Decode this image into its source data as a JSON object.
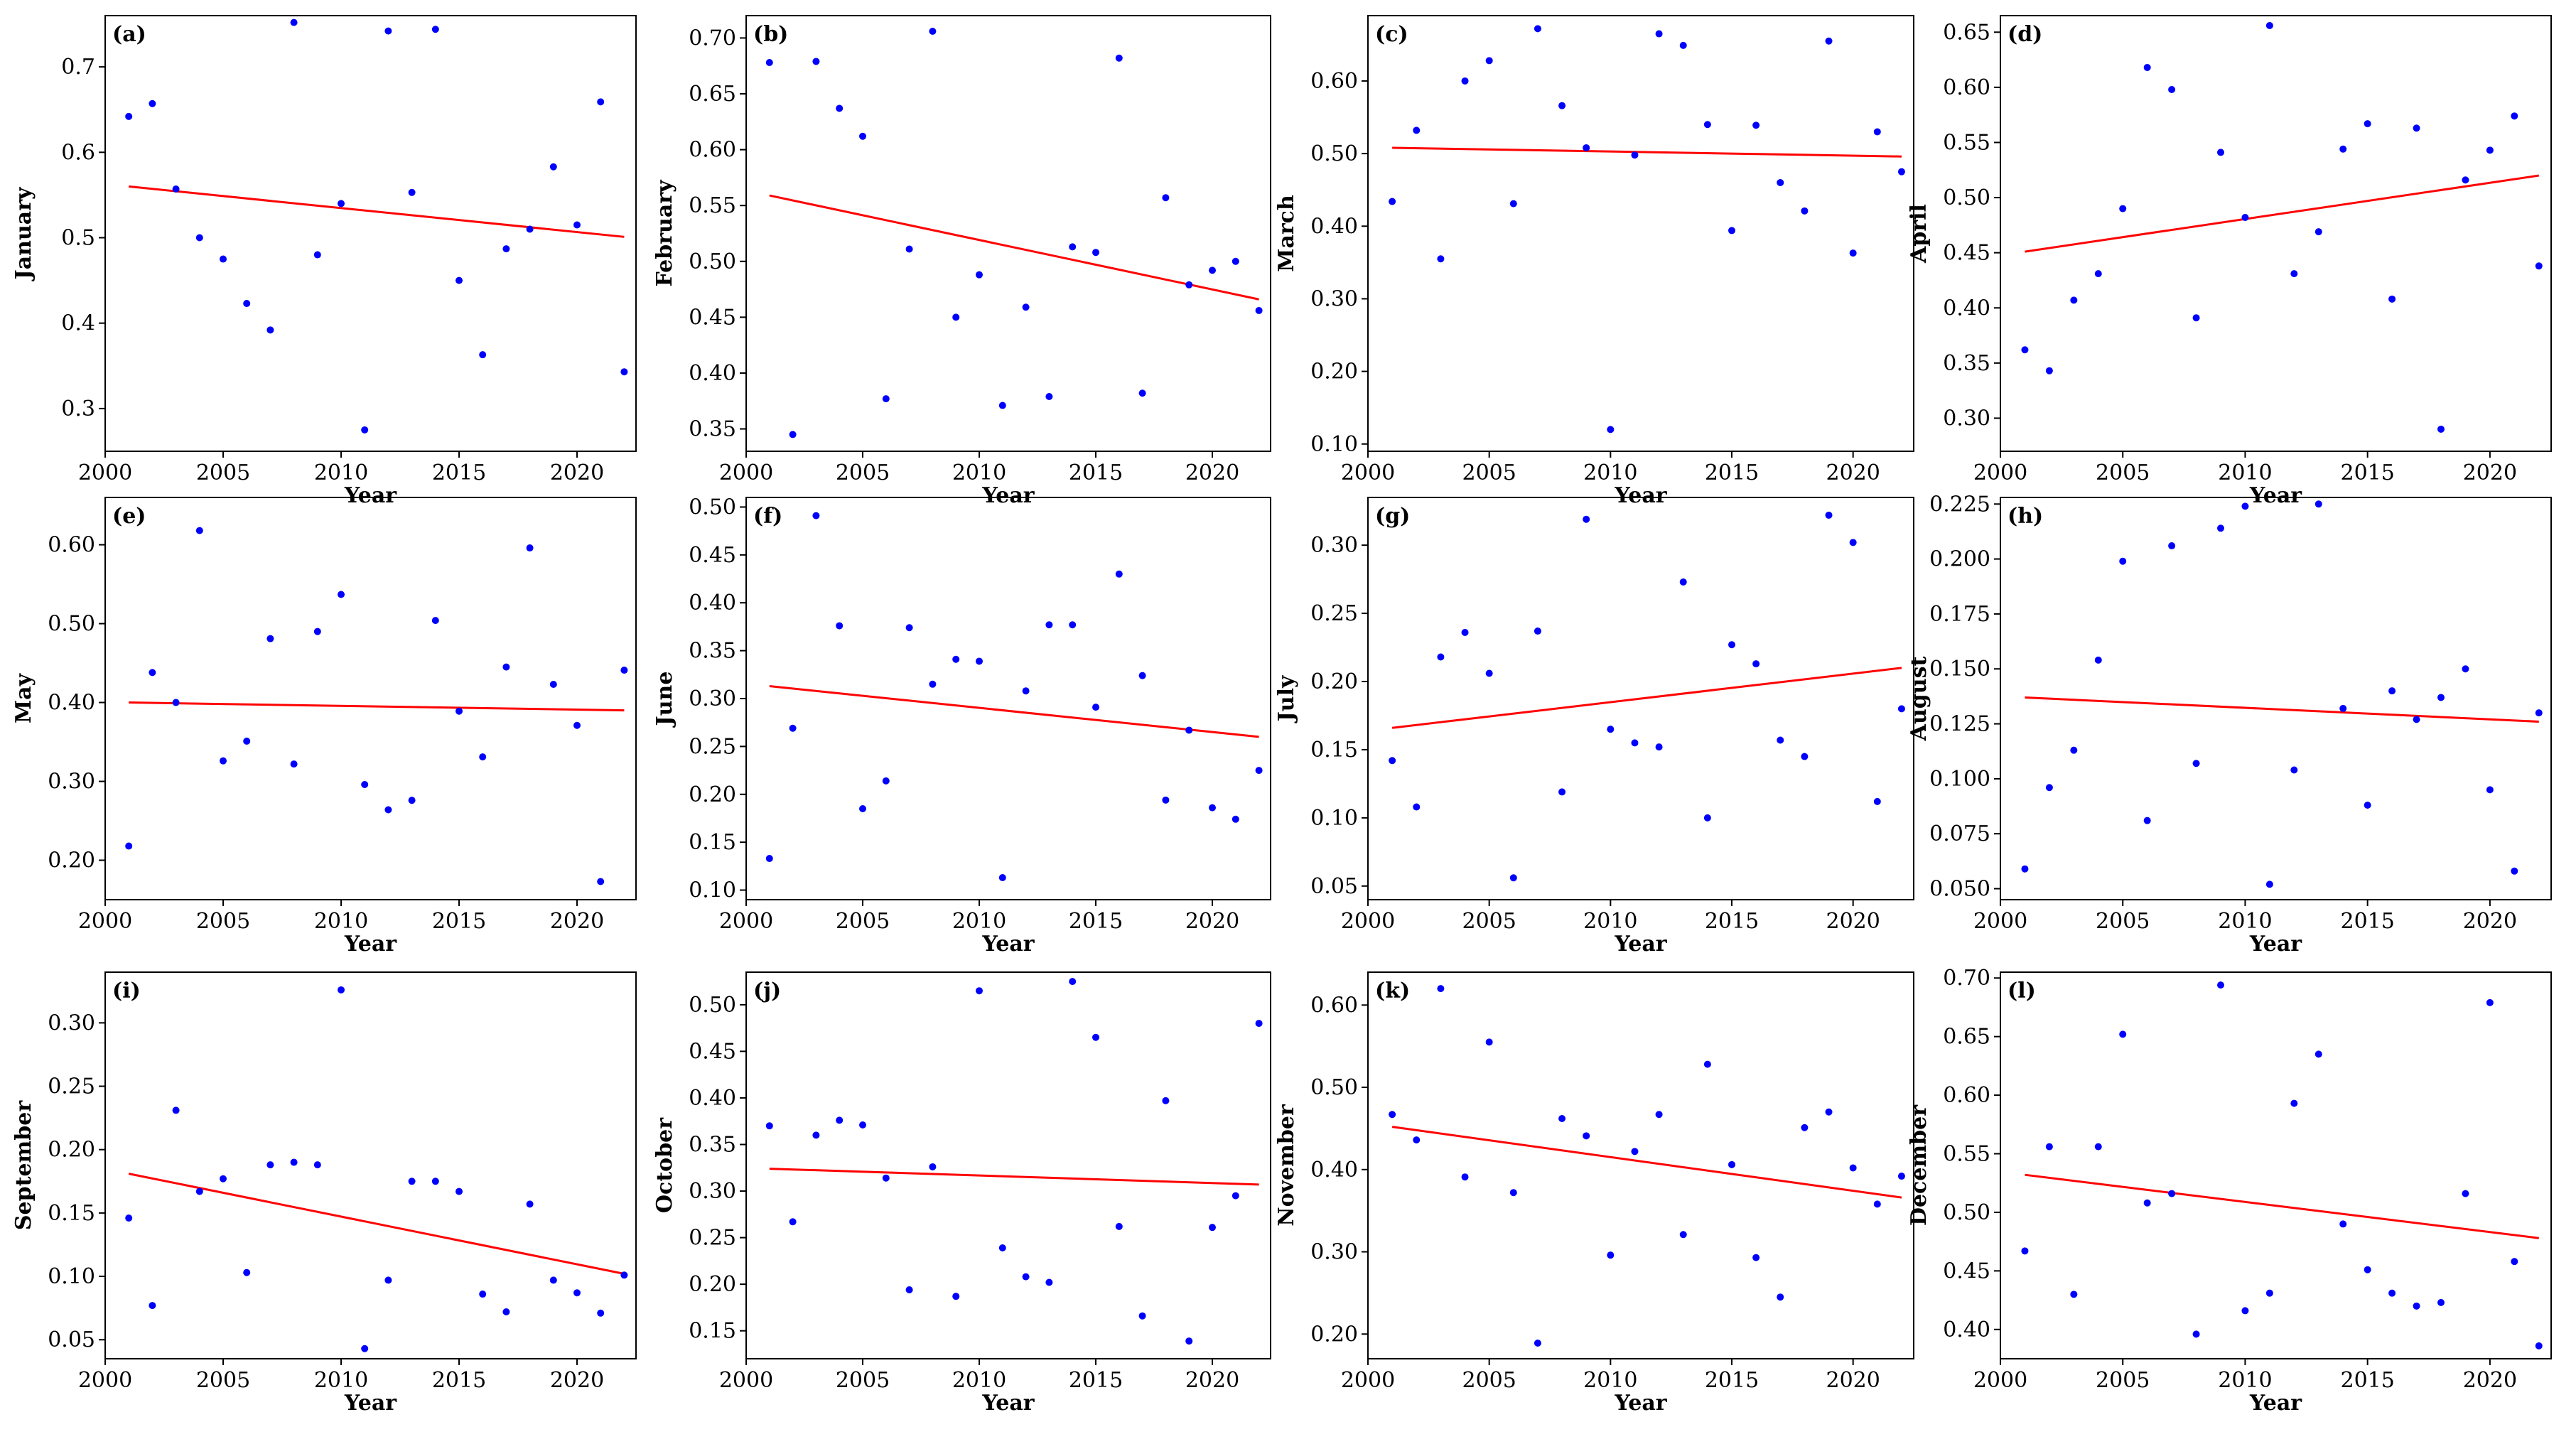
{
  "chart_data": [
    {
      "panel": "(a)",
      "type": "scatter",
      "ylabel": "January",
      "xlabel": "Year",
      "xlim": [
        2000,
        2022.5
      ],
      "ylim": [
        0.25,
        0.76
      ],
      "xticks": [
        2000,
        2005,
        2010,
        2015,
        2020
      ],
      "xtick_labels": [
        "2000",
        "2005",
        "2010",
        "2015",
        "2020"
      ],
      "yticks": [
        0.3,
        0.4,
        0.5,
        0.6,
        0.7
      ],
      "ytick_labels": [
        "0.3",
        "0.4",
        "0.5",
        "0.6",
        "0.7"
      ],
      "x": [
        2001,
        2002,
        2003,
        2004,
        2005,
        2006,
        2007,
        2008,
        2009,
        2010,
        2011,
        2012,
        2013,
        2014,
        2015,
        2016,
        2017,
        2018,
        2019,
        2020,
        2021,
        2022
      ],
      "y": [
        0.642,
        0.657,
        0.557,
        0.5,
        0.475,
        0.423,
        0.392,
        0.752,
        0.48,
        0.54,
        0.275,
        0.742,
        0.553,
        0.744,
        0.45,
        0.363,
        0.487,
        0.51,
        0.583,
        0.515,
        0.659,
        0.343
      ],
      "trend": {
        "x": [
          2001,
          2022
        ],
        "y": [
          0.56,
          0.501
        ]
      }
    },
    {
      "panel": "(b)",
      "type": "scatter",
      "ylabel": "February",
      "xlabel": "Year",
      "xlim": [
        2000,
        2022.5
      ],
      "ylim": [
        0.33,
        0.72
      ],
      "xticks": [
        2000,
        2005,
        2010,
        2015,
        2020
      ],
      "xtick_labels": [
        "2000",
        "2005",
        "2010",
        "2015",
        "2020"
      ],
      "yticks": [
        0.35,
        0.4,
        0.45,
        0.5,
        0.55,
        0.6,
        0.65,
        0.7
      ],
      "ytick_labels": [
        "0.35",
        "0.40",
        "0.45",
        "0.50",
        "0.55",
        "0.60",
        "0.65",
        "0.70"
      ],
      "x": [
        2001,
        2002,
        2003,
        2004,
        2005,
        2006,
        2007,
        2008,
        2009,
        2010,
        2011,
        2012,
        2013,
        2014,
        2015,
        2016,
        2017,
        2018,
        2019,
        2020,
        2021,
        2022
      ],
      "y": [
        0.678,
        0.345,
        0.679,
        0.637,
        0.612,
        0.377,
        0.511,
        0.706,
        0.45,
        0.488,
        0.371,
        0.459,
        0.379,
        0.513,
        0.508,
        0.682,
        0.382,
        0.557,
        0.479,
        0.492,
        0.5,
        0.456
      ],
      "trend": {
        "x": [
          2001,
          2022
        ],
        "y": [
          0.559,
          0.466
        ]
      }
    },
    {
      "panel": "(c)",
      "type": "scatter",
      "ylabel": "March",
      "xlabel": "Year",
      "xlim": [
        2000,
        2022.5
      ],
      "ylim": [
        0.09,
        0.69
      ],
      "xticks": [
        2000,
        2005,
        2010,
        2015,
        2020
      ],
      "xtick_labels": [
        "2000",
        "2005",
        "2010",
        "2015",
        "2020"
      ],
      "yticks": [
        0.1,
        0.2,
        0.3,
        0.4,
        0.5,
        0.6
      ],
      "ytick_labels": [
        "0.10",
        "0.20",
        "0.30",
        "0.40",
        "0.50",
        "0.60"
      ],
      "x": [
        2001,
        2002,
        2003,
        2004,
        2005,
        2006,
        2007,
        2008,
        2009,
        2010,
        2011,
        2012,
        2013,
        2014,
        2015,
        2016,
        2017,
        2018,
        2019,
        2020,
        2021,
        2022
      ],
      "y": [
        0.434,
        0.532,
        0.355,
        0.6,
        0.628,
        0.431,
        0.672,
        0.566,
        0.508,
        0.12,
        0.498,
        0.665,
        0.649,
        0.54,
        0.394,
        0.539,
        0.46,
        0.421,
        0.655,
        0.363,
        0.53,
        0.475
      ],
      "trend": {
        "x": [
          2001,
          2022
        ],
        "y": [
          0.508,
          0.496
        ]
      }
    },
    {
      "panel": "(d)",
      "type": "scatter",
      "ylabel": "April",
      "xlabel": "Year",
      "xlim": [
        2000,
        2022.5
      ],
      "ylim": [
        0.27,
        0.665
      ],
      "xticks": [
        2000,
        2005,
        2010,
        2015,
        2020
      ],
      "xtick_labels": [
        "2000",
        "2005",
        "2010",
        "2015",
        "2020"
      ],
      "yticks": [
        0.3,
        0.35,
        0.4,
        0.45,
        0.5,
        0.55,
        0.6,
        0.65
      ],
      "ytick_labels": [
        "0.30",
        "0.35",
        "0.40",
        "0.45",
        "0.50",
        "0.55",
        "0.60",
        "0.65"
      ],
      "x": [
        2001,
        2002,
        2003,
        2004,
        2005,
        2006,
        2007,
        2008,
        2009,
        2010,
        2011,
        2012,
        2013,
        2014,
        2015,
        2016,
        2017,
        2018,
        2019,
        2020,
        2021,
        2022
      ],
      "y": [
        0.362,
        0.343,
        0.407,
        0.431,
        0.49,
        0.618,
        0.598,
        0.391,
        0.541,
        0.482,
        0.656,
        0.431,
        0.469,
        0.544,
        0.567,
        0.408,
        0.563,
        0.29,
        0.516,
        0.543,
        0.574,
        0.438
      ],
      "trend": {
        "x": [
          2001,
          2022
        ],
        "y": [
          0.451,
          0.52
        ]
      }
    },
    {
      "panel": "(e)",
      "type": "scatter",
      "ylabel": "May",
      "xlabel": "Year",
      "xlim": [
        2000,
        2022.5
      ],
      "ylim": [
        0.15,
        0.66
      ],
      "xticks": [
        2000,
        2005,
        2010,
        2015,
        2020
      ],
      "xtick_labels": [
        "2000",
        "2005",
        "2010",
        "2015",
        "2020"
      ],
      "yticks": [
        0.2,
        0.3,
        0.4,
        0.5,
        0.6
      ],
      "ytick_labels": [
        "0.20",
        "0.30",
        "0.40",
        "0.50",
        "0.60"
      ],
      "x": [
        2001,
        2002,
        2003,
        2004,
        2005,
        2006,
        2007,
        2008,
        2009,
        2010,
        2011,
        2012,
        2013,
        2014,
        2015,
        2016,
        2017,
        2018,
        2019,
        2020,
        2021,
        2022
      ],
      "y": [
        0.218,
        0.438,
        0.4,
        0.618,
        0.326,
        0.351,
        0.481,
        0.322,
        0.49,
        0.537,
        0.296,
        0.264,
        0.276,
        0.504,
        0.389,
        0.331,
        0.445,
        0.596,
        0.423,
        0.371,
        0.173,
        0.441
      ],
      "trend": {
        "x": [
          2001,
          2022
        ],
        "y": [
          0.4,
          0.39
        ]
      }
    },
    {
      "panel": "(f)",
      "type": "scatter",
      "ylabel": "June",
      "xlabel": "Year",
      "xlim": [
        2000,
        2022.5
      ],
      "ylim": [
        0.09,
        0.51
      ],
      "xticks": [
        2000,
        2005,
        2010,
        2015,
        2020
      ],
      "xtick_labels": [
        "2000",
        "2005",
        "2010",
        "2015",
        "2020"
      ],
      "yticks": [
        0.1,
        0.15,
        0.2,
        0.25,
        0.3,
        0.35,
        0.4,
        0.45,
        0.5
      ],
      "ytick_labels": [
        "0.10",
        "0.15",
        "0.20",
        "0.25",
        "0.30",
        "0.35",
        "0.40",
        "0.45",
        "0.50"
      ],
      "x": [
        2001,
        2002,
        2003,
        2004,
        2005,
        2006,
        2007,
        2008,
        2009,
        2010,
        2011,
        2012,
        2013,
        2014,
        2015,
        2016,
        2017,
        2018,
        2019,
        2020,
        2021,
        2022
      ],
      "y": [
        0.133,
        0.269,
        0.491,
        0.376,
        0.185,
        0.214,
        0.374,
        0.315,
        0.341,
        0.339,
        0.113,
        0.308,
        0.377,
        0.377,
        0.291,
        0.43,
        0.324,
        0.194,
        0.267,
        0.186,
        0.174,
        0.225
      ],
      "trend": {
        "x": [
          2001,
          2022
        ],
        "y": [
          0.313,
          0.26
        ]
      }
    },
    {
      "panel": "(g)",
      "type": "scatter",
      "ylabel": "July",
      "xlabel": "Year",
      "xlim": [
        2000,
        2022.5
      ],
      "ylim": [
        0.04,
        0.335
      ],
      "xticks": [
        2000,
        2005,
        2010,
        2015,
        2020
      ],
      "xtick_labels": [
        "2000",
        "2005",
        "2010",
        "2015",
        "2020"
      ],
      "yticks": [
        0.05,
        0.1,
        0.15,
        0.2,
        0.25,
        0.3
      ],
      "ytick_labels": [
        "0.05",
        "0.10",
        "0.15",
        "0.20",
        "0.25",
        "0.30"
      ],
      "x": [
        2001,
        2002,
        2003,
        2004,
        2005,
        2006,
        2007,
        2008,
        2009,
        2010,
        2011,
        2012,
        2013,
        2014,
        2015,
        2016,
        2017,
        2018,
        2019,
        2020,
        2021,
        2022
      ],
      "y": [
        0.142,
        0.108,
        0.218,
        0.236,
        0.206,
        0.056,
        0.237,
        0.119,
        0.319,
        0.165,
        0.155,
        0.152,
        0.273,
        0.1,
        0.227,
        0.213,
        0.157,
        0.145,
        0.322,
        0.302,
        0.112,
        0.18
      ],
      "trend": {
        "x": [
          2001,
          2022
        ],
        "y": [
          0.166,
          0.21
        ]
      }
    },
    {
      "panel": "(h)",
      "type": "scatter",
      "ylabel": "August",
      "xlabel": "Year",
      "xlim": [
        2000,
        2022.5
      ],
      "ylim": [
        0.045,
        0.228
      ],
      "xticks": [
        2000,
        2005,
        2010,
        2015,
        2020
      ],
      "xtick_labels": [
        "2000",
        "2005",
        "2010",
        "2015",
        "2020"
      ],
      "yticks": [
        0.05,
        0.075,
        0.1,
        0.125,
        0.15,
        0.175,
        0.2,
        0.225
      ],
      "ytick_labels": [
        "0.050",
        "0.075",
        "0.100",
        "0.125",
        "0.150",
        "0.175",
        "0.200",
        "0.225"
      ],
      "x": [
        2001,
        2002,
        2003,
        2004,
        2005,
        2006,
        2007,
        2008,
        2009,
        2010,
        2011,
        2012,
        2013,
        2014,
        2015,
        2016,
        2017,
        2018,
        2019,
        2020,
        2021,
        2022
      ],
      "y": [
        0.059,
        0.096,
        0.113,
        0.154,
        0.199,
        0.081,
        0.206,
        0.107,
        0.214,
        0.224,
        0.052,
        0.104,
        0.225,
        0.132,
        0.088,
        0.14,
        0.127,
        0.137,
        0.15,
        0.095,
        0.058,
        0.13
      ],
      "trend": {
        "x": [
          2001,
          2022
        ],
        "y": [
          0.137,
          0.126
        ]
      }
    },
    {
      "panel": "(i)",
      "type": "scatter",
      "ylabel": "September",
      "xlabel": "Year",
      "xlim": [
        2000,
        2022.5
      ],
      "ylim": [
        0.035,
        0.34
      ],
      "xticks": [
        2000,
        2005,
        2010,
        2015,
        2020
      ],
      "xtick_labels": [
        "2000",
        "2005",
        "2010",
        "2015",
        "2020"
      ],
      "yticks": [
        0.05,
        0.1,
        0.15,
        0.2,
        0.25,
        0.3
      ],
      "ytick_labels": [
        "0.05",
        "0.10",
        "0.15",
        "0.20",
        "0.25",
        "0.30"
      ],
      "x": [
        2001,
        2002,
        2003,
        2004,
        2005,
        2006,
        2007,
        2008,
        2009,
        2010,
        2011,
        2012,
        2013,
        2014,
        2015,
        2016,
        2017,
        2018,
        2019,
        2020,
        2021,
        2022
      ],
      "y": [
        0.146,
        0.077,
        0.231,
        0.167,
        0.177,
        0.103,
        0.188,
        0.19,
        0.188,
        0.326,
        0.043,
        0.097,
        0.175,
        0.175,
        0.167,
        0.086,
        0.072,
        0.157,
        0.097,
        0.087,
        0.071,
        0.101
      ],
      "trend": {
        "x": [
          2001,
          2022
        ],
        "y": [
          0.181,
          0.102
        ]
      }
    },
    {
      "panel": "(j)",
      "type": "scatter",
      "ylabel": "October",
      "xlabel": "Year",
      "xlim": [
        2000,
        2022.5
      ],
      "ylim": [
        0.12,
        0.535
      ],
      "xticks": [
        2000,
        2005,
        2010,
        2015,
        2020
      ],
      "xtick_labels": [
        "2000",
        "2005",
        "2010",
        "2015",
        "2020"
      ],
      "yticks": [
        0.15,
        0.2,
        0.25,
        0.3,
        0.35,
        0.4,
        0.45,
        0.5
      ],
      "ytick_labels": [
        "0.15",
        "0.20",
        "0.25",
        "0.30",
        "0.35",
        "0.40",
        "0.45",
        "0.50"
      ],
      "x": [
        2001,
        2002,
        2003,
        2004,
        2005,
        2006,
        2007,
        2008,
        2009,
        2010,
        2011,
        2012,
        2013,
        2014,
        2015,
        2016,
        2017,
        2018,
        2019,
        2020,
        2021,
        2022
      ],
      "y": [
        0.37,
        0.267,
        0.36,
        0.376,
        0.371,
        0.314,
        0.194,
        0.326,
        0.187,
        0.515,
        0.239,
        0.208,
        0.202,
        0.525,
        0.465,
        0.262,
        0.166,
        0.397,
        0.139,
        0.261,
        0.295,
        0.48
      ],
      "trend": {
        "x": [
          2001,
          2022
        ],
        "y": [
          0.324,
          0.307
        ]
      }
    },
    {
      "panel": "(k)",
      "type": "scatter",
      "ylabel": "November",
      "xlabel": "Year",
      "xlim": [
        2000,
        2022.5
      ],
      "ylim": [
        0.17,
        0.64
      ],
      "xticks": [
        2000,
        2005,
        2010,
        2015,
        2020
      ],
      "xtick_labels": [
        "2000",
        "2005",
        "2010",
        "2015",
        "2020"
      ],
      "yticks": [
        0.2,
        0.3,
        0.4,
        0.5,
        0.6
      ],
      "ytick_labels": [
        "0.20",
        "0.30",
        "0.40",
        "0.50",
        "0.60"
      ],
      "x": [
        2001,
        2002,
        2003,
        2004,
        2005,
        2006,
        2007,
        2008,
        2009,
        2010,
        2011,
        2012,
        2013,
        2014,
        2015,
        2016,
        2017,
        2018,
        2019,
        2020,
        2021,
        2022
      ],
      "y": [
        0.467,
        0.436,
        0.62,
        0.391,
        0.555,
        0.372,
        0.189,
        0.462,
        0.441,
        0.296,
        0.422,
        0.467,
        0.321,
        0.528,
        0.406,
        0.293,
        0.245,
        0.451,
        0.47,
        0.402,
        0.358,
        0.392
      ],
      "trend": {
        "x": [
          2001,
          2022
        ],
        "y": [
          0.452,
          0.366
        ]
      }
    },
    {
      "panel": "(l)",
      "type": "scatter",
      "ylabel": "December",
      "xlabel": "Year",
      "xlim": [
        2000,
        2022.5
      ],
      "ylim": [
        0.375,
        0.705
      ],
      "xticks": [
        2000,
        2005,
        2010,
        2015,
        2020
      ],
      "xtick_labels": [
        "2000",
        "2005",
        "2010",
        "2015",
        "2020"
      ],
      "yticks": [
        0.4,
        0.45,
        0.5,
        0.55,
        0.6,
        0.65,
        0.7
      ],
      "ytick_labels": [
        "0.40",
        "0.45",
        "0.50",
        "0.55",
        "0.60",
        "0.65",
        "0.70"
      ],
      "x": [
        2001,
        2002,
        2003,
        2004,
        2005,
        2006,
        2007,
        2008,
        2009,
        2010,
        2011,
        2012,
        2013,
        2014,
        2015,
        2016,
        2017,
        2018,
        2019,
        2020,
        2021,
        2022
      ],
      "y": [
        0.467,
        0.556,
        0.43,
        0.556,
        0.652,
        0.508,
        0.516,
        0.396,
        0.694,
        0.416,
        0.431,
        0.593,
        0.635,
        0.49,
        0.451,
        0.431,
        0.42,
        0.423,
        0.516,
        0.679,
        0.458,
        0.386
      ],
      "trend": {
        "x": [
          2001,
          2022
        ],
        "y": [
          0.532,
          0.478
        ]
      }
    }
  ],
  "colors": {
    "points": "#0000ff",
    "trend": "#ff0000",
    "axes": "#000000",
    "background": "#ffffff"
  }
}
